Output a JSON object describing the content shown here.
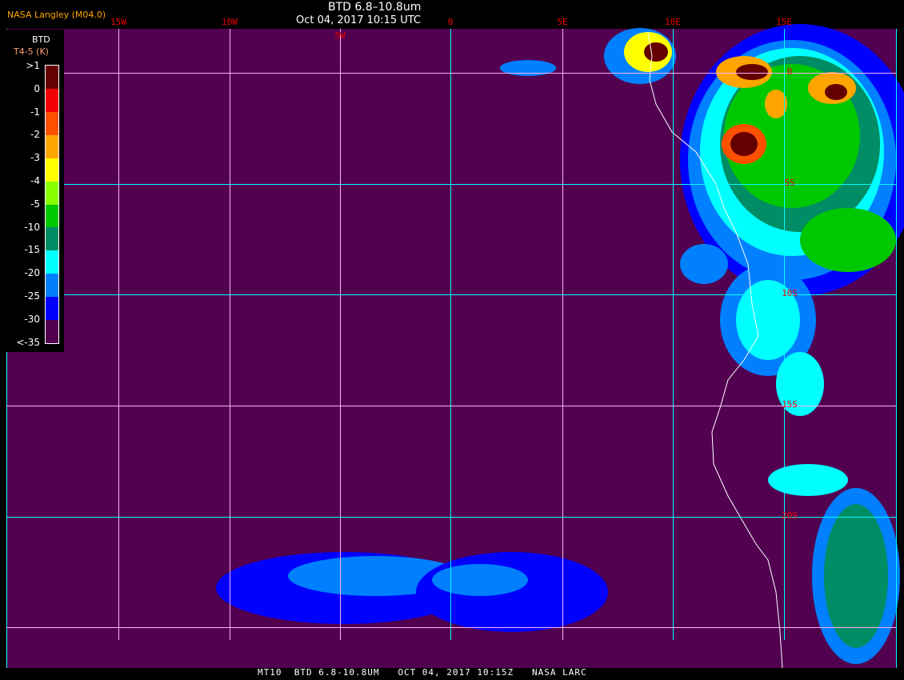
{
  "header": {
    "title": "BTD 6.8–10.8um",
    "datetime": "Oct 04, 2017 10:15 UTC",
    "credit": "NASA Langley (M04.0)"
  },
  "map": {
    "background_color": "#520050",
    "longitude_labels": [
      "15W",
      "10W",
      "5W",
      "0",
      "5E",
      "10E",
      "15E"
    ],
    "latitude_labels": [
      "0",
      "5S",
      "10S",
      "15S",
      "20S"
    ],
    "gridline_colors": {
      "cyan": "#00ffff",
      "pink": "#ffb0ff"
    }
  },
  "legend": {
    "title": "BTD",
    "unit": "T4-5 (K)",
    "ticks": [
      ">1",
      "0",
      "-1",
      "-2",
      "-3",
      "-4",
      "-5",
      "-10",
      "-15",
      "-20",
      "-25",
      "-30",
      "<-35"
    ],
    "colors": [
      "#640000",
      "#f00000",
      "#ff5000",
      "#ffa500",
      "#ffff00",
      "#88ff00",
      "#00c800",
      "#008c64",
      "#00ffff",
      "#0080ff",
      "#0000ff",
      "#520050"
    ]
  },
  "footer": "MT10  BTD 6.8-10.8UM   OCT 04, 2017 10:15Z   NASA LARC"
}
